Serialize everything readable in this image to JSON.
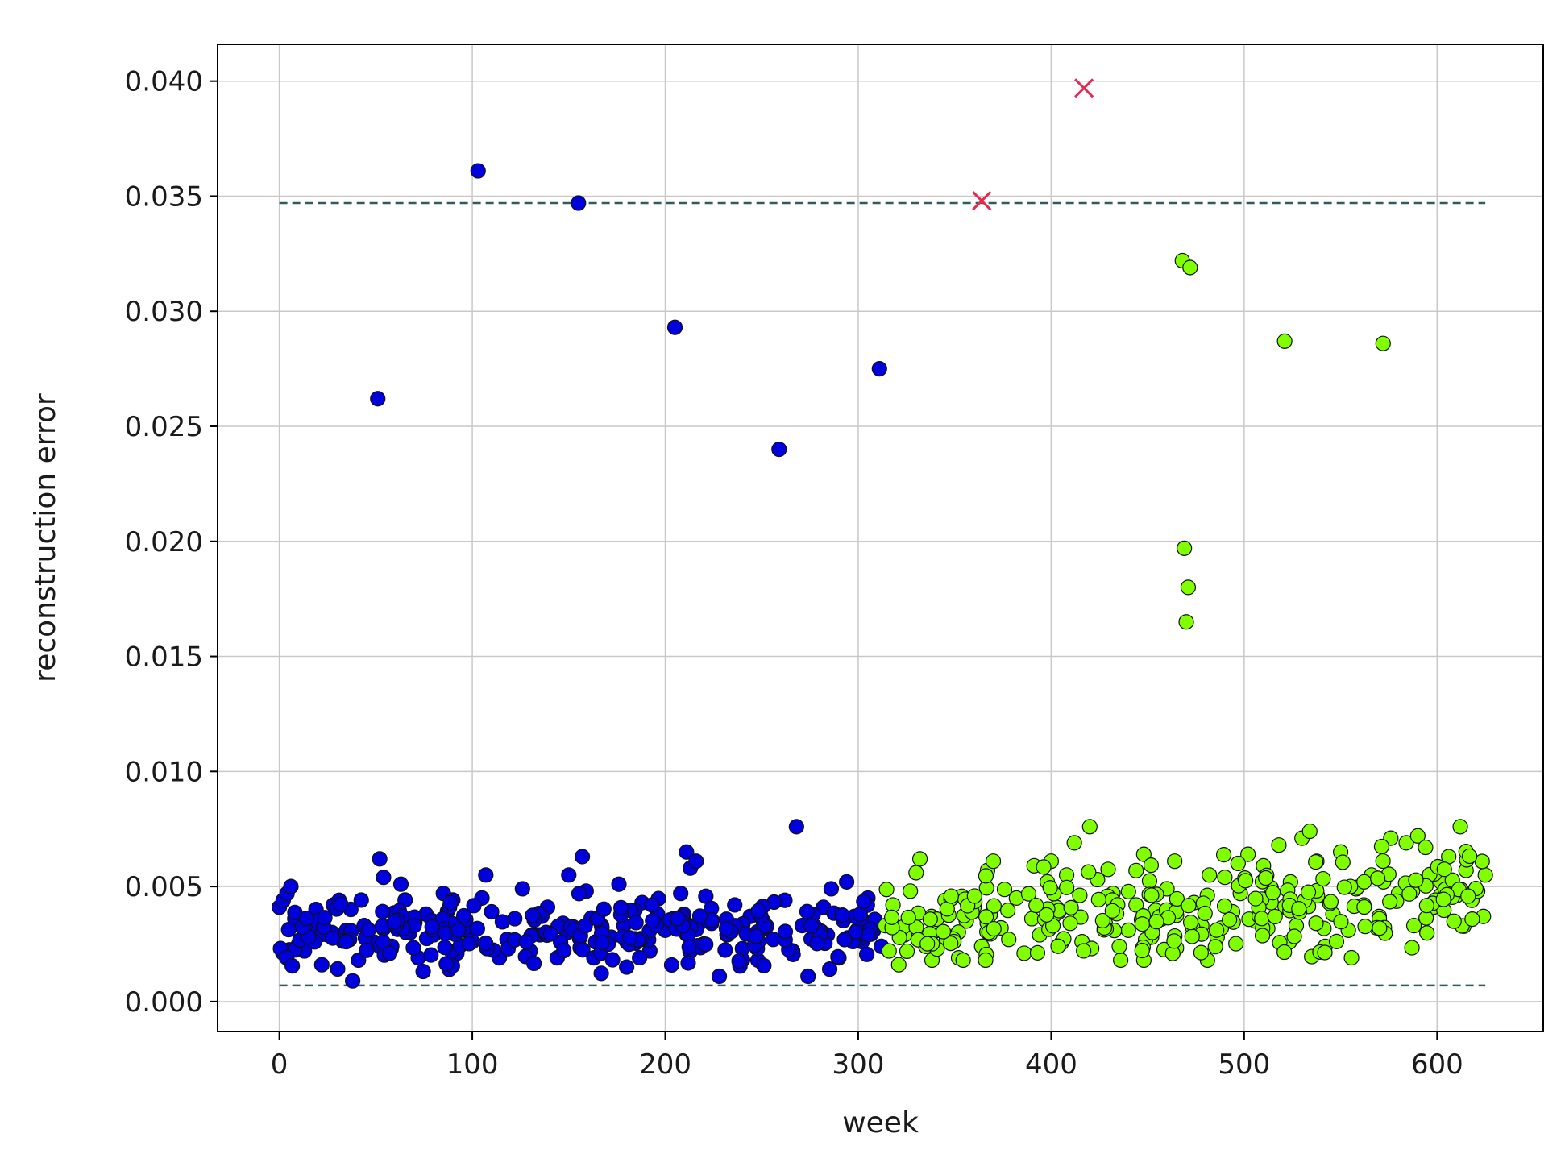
{
  "chart_data": {
    "type": "scatter",
    "title": "",
    "xlabel": "week",
    "ylabel": "reconstruction error",
    "xlim": [
      -32,
      655
    ],
    "ylim": [
      -0.0013,
      0.0416
    ],
    "x_ticks": [
      0,
      100,
      200,
      300,
      400,
      500,
      600
    ],
    "y_ticks": [
      0.0,
      0.005,
      0.01,
      0.015,
      0.02,
      0.025,
      0.03,
      0.035,
      0.04
    ],
    "x_tick_labels": [
      "0",
      "100",
      "200",
      "300",
      "400",
      "500",
      "600"
    ],
    "y_tick_labels": [
      "0.000",
      "0.005",
      "0.010",
      "0.015",
      "0.020",
      "0.025",
      "0.030",
      "0.035",
      "0.040"
    ],
    "grid": true,
    "legend": "none",
    "thresholds": [
      {
        "y": 0.0347,
        "x_range": [
          0,
          625
        ],
        "color": "#2f5d5d",
        "style": "dashed"
      },
      {
        "y": 0.0007,
        "x_range": [
          0,
          625
        ],
        "color": "#2f5d5d",
        "style": "dashed"
      }
    ],
    "series": [
      {
        "marker": "circle",
        "color": "#0000dd",
        "edge_color": "#111111",
        "x_range": [
          0,
          312
        ],
        "bulk_band": [
          0.0012,
          0.0052
        ],
        "points": [
          [
            0,
            0.0041
          ],
          [
            2,
            0.0044
          ],
          [
            4,
            0.0047
          ],
          [
            6,
            0.005
          ],
          [
            8,
            0.0036
          ],
          [
            10,
            0.0025
          ],
          [
            13,
            0.0022
          ],
          [
            16,
            0.0032
          ],
          [
            19,
            0.004
          ],
          [
            22,
            0.0016
          ],
          [
            25,
            0.0029
          ],
          [
            28,
            0.0042
          ],
          [
            31,
            0.0044
          ],
          [
            35,
            0.0027
          ],
          [
            38,
            0.0009
          ],
          [
            41,
            0.0018
          ],
          [
            44,
            0.0033
          ],
          [
            48,
            0.0025
          ],
          [
            51,
            0.0262
          ],
          [
            52,
            0.0062
          ],
          [
            54,
            0.0054
          ],
          [
            58,
            0.0023
          ],
          [
            63,
            0.0051
          ],
          [
            67,
            0.0035
          ],
          [
            72,
            0.0019
          ],
          [
            76,
            0.0038
          ],
          [
            80,
            0.0029
          ],
          [
            85,
            0.0047
          ],
          [
            88,
            0.0014
          ],
          [
            92,
            0.0021
          ],
          [
            96,
            0.0031
          ],
          [
            100,
            0.0026
          ],
          [
            103,
            0.0361
          ],
          [
            105,
            0.0045
          ],
          [
            107,
            0.0055
          ],
          [
            110,
            0.0039
          ],
          [
            114,
            0.0019
          ],
          [
            118,
            0.0027
          ],
          [
            122,
            0.0036
          ],
          [
            126,
            0.0049
          ],
          [
            130,
            0.0022
          ],
          [
            135,
            0.0029
          ],
          [
            139,
            0.0041
          ],
          [
            144,
            0.0019
          ],
          [
            147,
            0.0034
          ],
          [
            150,
            0.0055
          ],
          [
            155,
            0.0347
          ],
          [
            157,
            0.0063
          ],
          [
            159,
            0.0048
          ],
          [
            163,
            0.0019
          ],
          [
            167,
            0.0033
          ],
          [
            172,
            0.0028
          ],
          [
            176,
            0.0051
          ],
          [
            180,
            0.0015
          ],
          [
            184,
            0.0026
          ],
          [
            188,
            0.0043
          ],
          [
            192,
            0.0022
          ],
          [
            196,
            0.0038
          ],
          [
            200,
            0.0031
          ],
          [
            205,
            0.0293
          ],
          [
            208,
            0.0047
          ],
          [
            211,
            0.0065
          ],
          [
            213,
            0.0058
          ],
          [
            216,
            0.0061
          ],
          [
            220,
            0.0025
          ],
          [
            224,
            0.0034
          ],
          [
            228,
            0.0011
          ],
          [
            232,
            0.0029
          ],
          [
            236,
            0.0042
          ],
          [
            240,
            0.0023
          ],
          [
            244,
            0.0037
          ],
          [
            248,
            0.0018
          ],
          [
            252,
            0.0032
          ],
          [
            256,
            0.0027
          ],
          [
            259,
            0.024
          ],
          [
            262,
            0.0044
          ],
          [
            266,
            0.0022
          ],
          [
            268,
            0.0076
          ],
          [
            271,
            0.0033
          ],
          [
            274,
            0.0011
          ],
          [
            278,
            0.0028
          ],
          [
            282,
            0.0041
          ],
          [
            286,
            0.0049
          ],
          [
            290,
            0.0019
          ],
          [
            294,
            0.0052
          ],
          [
            298,
            0.0037
          ],
          [
            302,
            0.0026
          ],
          [
            305,
            0.0045
          ],
          [
            308,
            0.0031
          ],
          [
            311,
            0.0275
          ],
          [
            312,
            0.0024
          ]
        ]
      },
      {
        "marker": "circle",
        "color": "#7fff00",
        "edge_color": "#111111",
        "x_range": [
          312,
          625
        ],
        "bulk_band": [
          0.0018,
          0.0075
        ],
        "points": [
          [
            314,
            0.0033
          ],
          [
            316,
            0.0022
          ],
          [
            318,
            0.0042
          ],
          [
            321,
            0.0016
          ],
          [
            324,
            0.0029
          ],
          [
            327,
            0.0048
          ],
          [
            330,
            0.0056
          ],
          [
            332,
            0.0062
          ],
          [
            335,
            0.0024
          ],
          [
            338,
            0.0037
          ],
          [
            341,
            0.0031
          ],
          [
            345,
            0.0044
          ],
          [
            348,
            0.0028
          ],
          [
            352,
            0.0019
          ],
          [
            356,
            0.0035
          ],
          [
            360,
            0.0041
          ],
          [
            364,
            0.0024
          ],
          [
            367,
            0.0057
          ],
          [
            370,
            0.0061
          ],
          [
            374,
            0.0032
          ],
          [
            378,
            0.0027
          ],
          [
            382,
            0.0045
          ],
          [
            386,
            0.0021
          ],
          [
            390,
            0.0036
          ],
          [
            394,
            0.0029
          ],
          [
            398,
            0.0052
          ],
          [
            400,
            0.0061
          ],
          [
            404,
            0.0039
          ],
          [
            408,
            0.0055
          ],
          [
            412,
            0.0069
          ],
          [
            416,
            0.0026
          ],
          [
            420,
            0.0076
          ],
          [
            424,
            0.0053
          ],
          [
            428,
            0.0034
          ],
          [
            432,
            0.0047
          ],
          [
            436,
            0.0018
          ],
          [
            440,
            0.0031
          ],
          [
            444,
            0.0042
          ],
          [
            448,
            0.0064
          ],
          [
            452,
            0.0028
          ],
          [
            456,
            0.0037
          ],
          [
            460,
            0.0049
          ],
          [
            464,
            0.0061
          ],
          [
            468,
            0.0322
          ],
          [
            469,
            0.0197
          ],
          [
            470,
            0.0165
          ],
          [
            471,
            0.018
          ],
          [
            472,
            0.0319
          ],
          [
            474,
            0.0043
          ],
          [
            478,
            0.0033
          ],
          [
            482,
            0.0055
          ],
          [
            486,
            0.0028
          ],
          [
            490,
            0.0054
          ],
          [
            494,
            0.0039
          ],
          [
            498,
            0.0047
          ],
          [
            502,
            0.0064
          ],
          [
            506,
            0.0035
          ],
          [
            510,
            0.0059
          ],
          [
            514,
            0.0043
          ],
          [
            518,
            0.0068
          ],
          [
            521,
            0.0287
          ],
          [
            524,
            0.0052
          ],
          [
            527,
            0.0033
          ],
          [
            530,
            0.0071
          ],
          [
            534,
            0.0074
          ],
          [
            538,
            0.0046
          ],
          [
            542,
            0.0024
          ],
          [
            546,
            0.0038
          ],
          [
            550,
            0.0065
          ],
          [
            554,
            0.0031
          ],
          [
            558,
            0.0049
          ],
          [
            562,
            0.0042
          ],
          [
            566,
            0.0055
          ],
          [
            570,
            0.0037
          ],
          [
            572,
            0.0286
          ],
          [
            576,
            0.0071
          ],
          [
            580,
            0.0047
          ],
          [
            584,
            0.0069
          ],
          [
            588,
            0.0033
          ],
          [
            590,
            0.0072
          ],
          [
            594,
            0.0067
          ],
          [
            598,
            0.0041
          ],
          [
            602,
            0.0052
          ],
          [
            606,
            0.0063
          ],
          [
            610,
            0.0046
          ],
          [
            612,
            0.0076
          ],
          [
            615,
            0.0057
          ],
          [
            618,
            0.0044
          ],
          [
            621,
            0.0048
          ],
          [
            624,
            0.0037
          ],
          [
            625,
            0.0055
          ]
        ]
      },
      {
        "marker": "x",
        "color": "#e8294f",
        "points": [
          [
            364,
            0.0348
          ],
          [
            417,
            0.0397
          ]
        ]
      }
    ]
  }
}
